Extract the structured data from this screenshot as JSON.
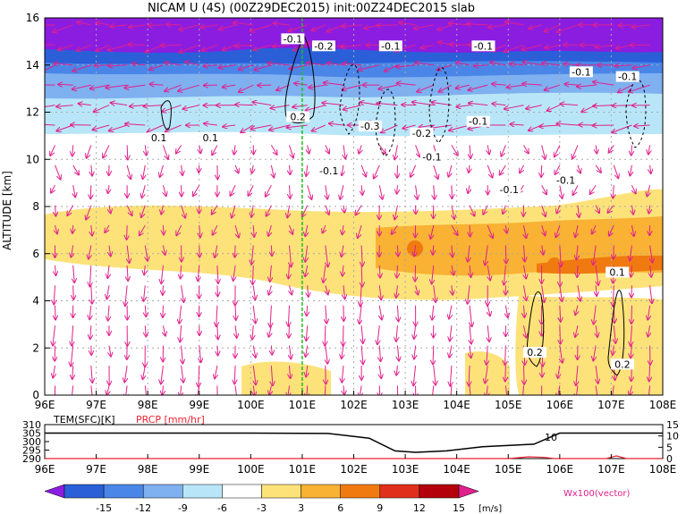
{
  "chart_data": {
    "type": "heatmap",
    "title": "NICAM U (4S) (00Z29DEC2015) init:00Z24DEC2015 slab",
    "ylabel": "ALTITUDE [km]",
    "xlabel": "",
    "x_ticks": [
      "96E",
      "97E",
      "98E",
      "99E",
      "100E",
      "101E",
      "102E",
      "103E",
      "104E",
      "105E",
      "106E",
      "107E",
      "108E"
    ],
    "x_range": [
      96,
      108
    ],
    "y_ticks": [
      "0",
      "2",
      "4",
      "6",
      "8",
      "10",
      "12",
      "14",
      "16"
    ],
    "y_range": [
      0,
      16
    ],
    "grid": true,
    "contour_labels": [
      {
        "text": "-0.1",
        "lon": 100.8,
        "z": 15.0
      },
      {
        "text": "-0.2",
        "lon": 101.4,
        "z": 14.7
      },
      {
        "text": "-0.1",
        "lon": 102.7,
        "z": 14.7
      },
      {
        "text": "-0.1",
        "lon": 104.5,
        "z": 14.7
      },
      {
        "text": "-0.1",
        "lon": 106.4,
        "z": 13.6
      },
      {
        "text": "-0.1",
        "lon": 107.3,
        "z": 13.4
      },
      {
        "text": "0.2",
        "lon": 100.9,
        "z": 11.7
      },
      {
        "text": "-0.3",
        "lon": 102.3,
        "z": 11.3
      },
      {
        "text": "-0.2",
        "lon": 103.3,
        "z": 11.0
      },
      {
        "text": "-0.1",
        "lon": 104.4,
        "z": 11.5
      },
      {
        "text": "0.1",
        "lon": 98.2,
        "z": 10.8
      },
      {
        "text": "0.1",
        "lon": 99.2,
        "z": 10.8
      },
      {
        "text": "-0.1",
        "lon": 103.5,
        "z": 10.0
      },
      {
        "text": "-0.1",
        "lon": 101.5,
        "z": 9.4
      },
      {
        "text": "-0.1",
        "lon": 105.0,
        "z": 8.6
      },
      {
        "text": "-0.1",
        "lon": 106.1,
        "z": 9.0
      },
      {
        "text": "0.1",
        "lon": 107.1,
        "z": 5.1
      },
      {
        "text": "0.2",
        "lon": 105.5,
        "z": 1.7
      },
      {
        "text": "0.2",
        "lon": 107.2,
        "z": 1.2
      }
    ],
    "colorbar": {
      "ticks": [
        "-15",
        "-12",
        "-9",
        "-6",
        "-3",
        "3",
        "6",
        "9",
        "12",
        "15"
      ],
      "unit": "[m/s]",
      "colors": [
        "#8b1de0",
        "#2a5fd8",
        "#4a86e8",
        "#7fb0f0",
        "#b8e6f8",
        "#ffffff",
        "#fde27a",
        "#f9b233",
        "#f07a10",
        "#e0301c",
        "#b3000b",
        "#e0208c"
      ]
    },
    "vector_label": "Wx100(vector)",
    "lower_panel": {
      "left_label": "TEM(SFC)[K]",
      "right_label": "PRCP [mm/hr]",
      "left_ticks": [
        "310",
        "305",
        "300",
        "295",
        "290"
      ],
      "right_ticks": [
        "15",
        "10",
        "5",
        "0"
      ],
      "inline_label": "10",
      "temperature": [
        [
          96,
          305
        ],
        [
          100,
          305
        ],
        [
          101.5,
          304.8
        ],
        [
          102.3,
          302
        ],
        [
          102.8,
          294.5
        ],
        [
          103.2,
          293.7
        ],
        [
          103.8,
          294.5
        ],
        [
          104.5,
          297
        ],
        [
          105.5,
          298.5
        ],
        [
          106,
          305
        ],
        [
          108,
          305
        ]
      ],
      "precip": [
        [
          96,
          0
        ],
        [
          105,
          0
        ],
        [
          105.4,
          0.8
        ],
        [
          105.7,
          0.5
        ],
        [
          105.9,
          0
        ],
        [
          106.9,
          0
        ],
        [
          107.1,
          1.2
        ],
        [
          107.3,
          0
        ],
        [
          108,
          0
        ]
      ]
    }
  }
}
